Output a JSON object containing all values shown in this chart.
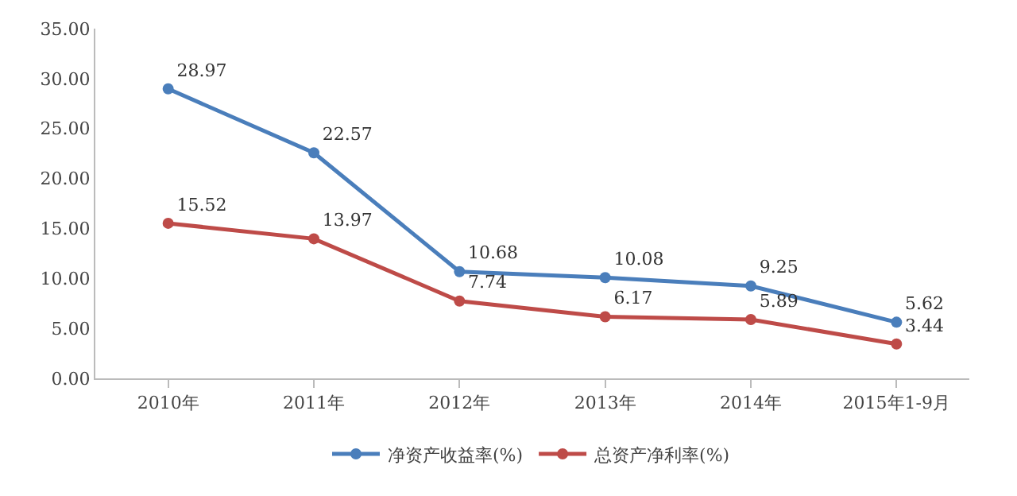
{
  "chart_data": {
    "type": "line",
    "categories": [
      "2010年",
      "2011年",
      "2012年",
      "2013年",
      "2014年",
      "2015年1-9月"
    ],
    "series": [
      {
        "name": "净资产收益率(%)",
        "color": "#4a7ebb",
        "values": [
          28.97,
          22.57,
          10.68,
          10.08,
          9.25,
          5.62
        ]
      },
      {
        "name": "总资产净利率(%)",
        "color": "#be4b48",
        "values": [
          15.52,
          13.97,
          7.74,
          6.17,
          5.89,
          3.44
        ]
      }
    ],
    "ylim": [
      0,
      35
    ],
    "yticks": [
      {
        "value": 0,
        "label": "0.00"
      },
      {
        "value": 5,
        "label": "5.00"
      },
      {
        "value": 10,
        "label": "10.00"
      },
      {
        "value": 15,
        "label": "15.00"
      },
      {
        "value": 20,
        "label": "20.00"
      },
      {
        "value": 25,
        "label": "25.00"
      },
      {
        "value": 30,
        "label": "30.00"
      },
      {
        "value": 35,
        "label": "35.00"
      }
    ],
    "data_labels": true,
    "legend": "bottom",
    "marker": "circle",
    "line_style": "solid",
    "grid": false
  }
}
